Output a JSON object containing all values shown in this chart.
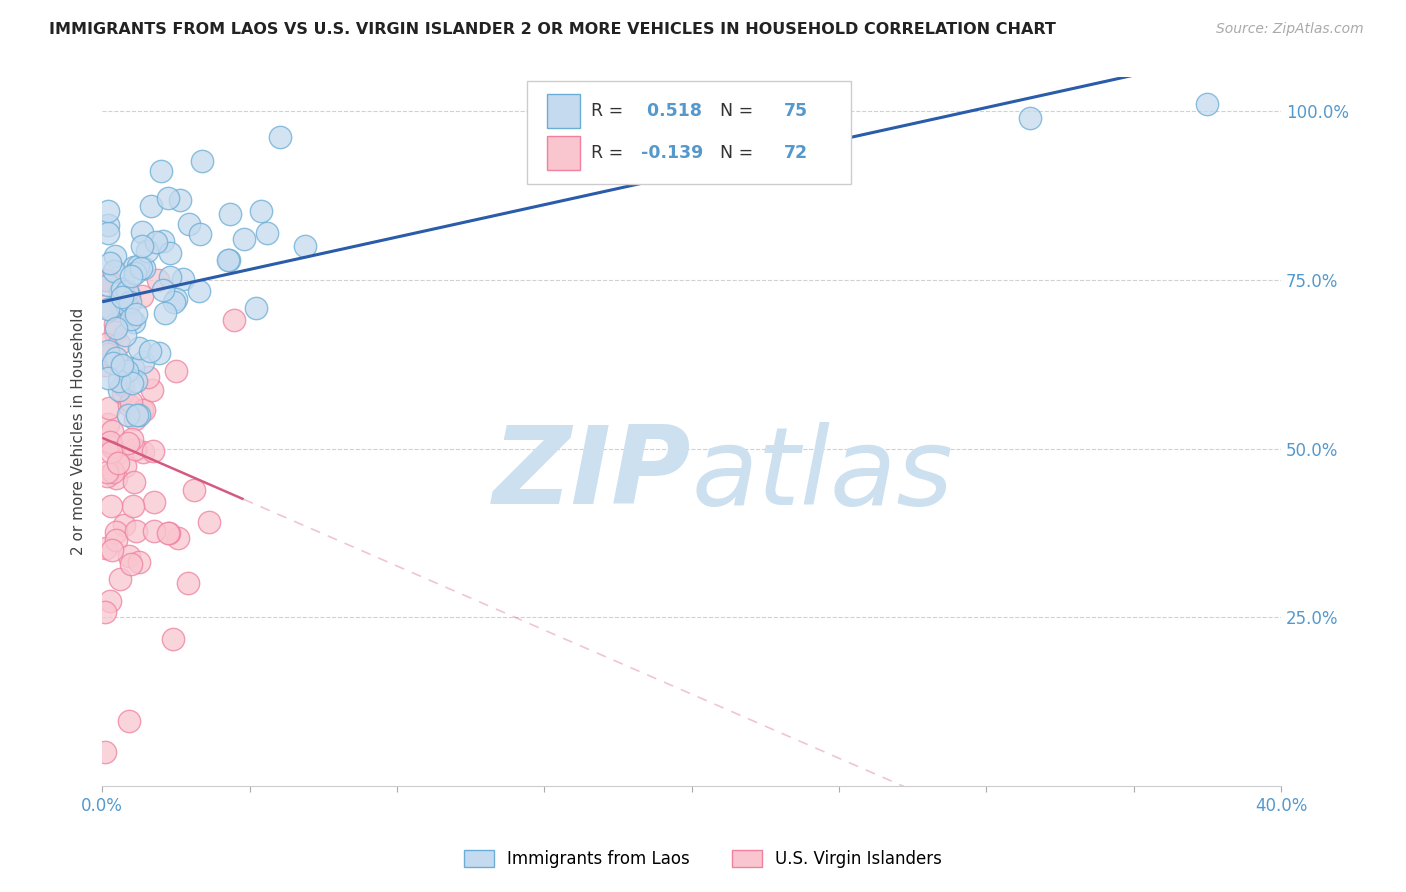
{
  "title": "IMMIGRANTS FROM LAOS VS U.S. VIRGIN ISLANDER 2 OR MORE VEHICLES IN HOUSEHOLD CORRELATION CHART",
  "source": "Source: ZipAtlas.com",
  "ylabel": "2 or more Vehicles in Household",
  "xmin": 0.0,
  "xmax": 0.4,
  "ymin": 0.0,
  "ymax": 1.05,
  "blue_R": 0.518,
  "blue_N": 75,
  "pink_R": -0.139,
  "pink_N": 72,
  "blue_color": "#c5daee",
  "blue_edge": "#6aaed6",
  "pink_color": "#f9c6d0",
  "pink_edge": "#f080a0",
  "blue_line_color": "#2a5caa",
  "pink_line_color": "#d45a80",
  "watermark_color": "#cce0f0",
  "background_color": "#ffffff",
  "grid_color": "#cccccc",
  "tick_color": "#5599cc",
  "title_color": "#222222",
  "ylabel_color": "#444444",
  "source_color": "#aaaaaa"
}
